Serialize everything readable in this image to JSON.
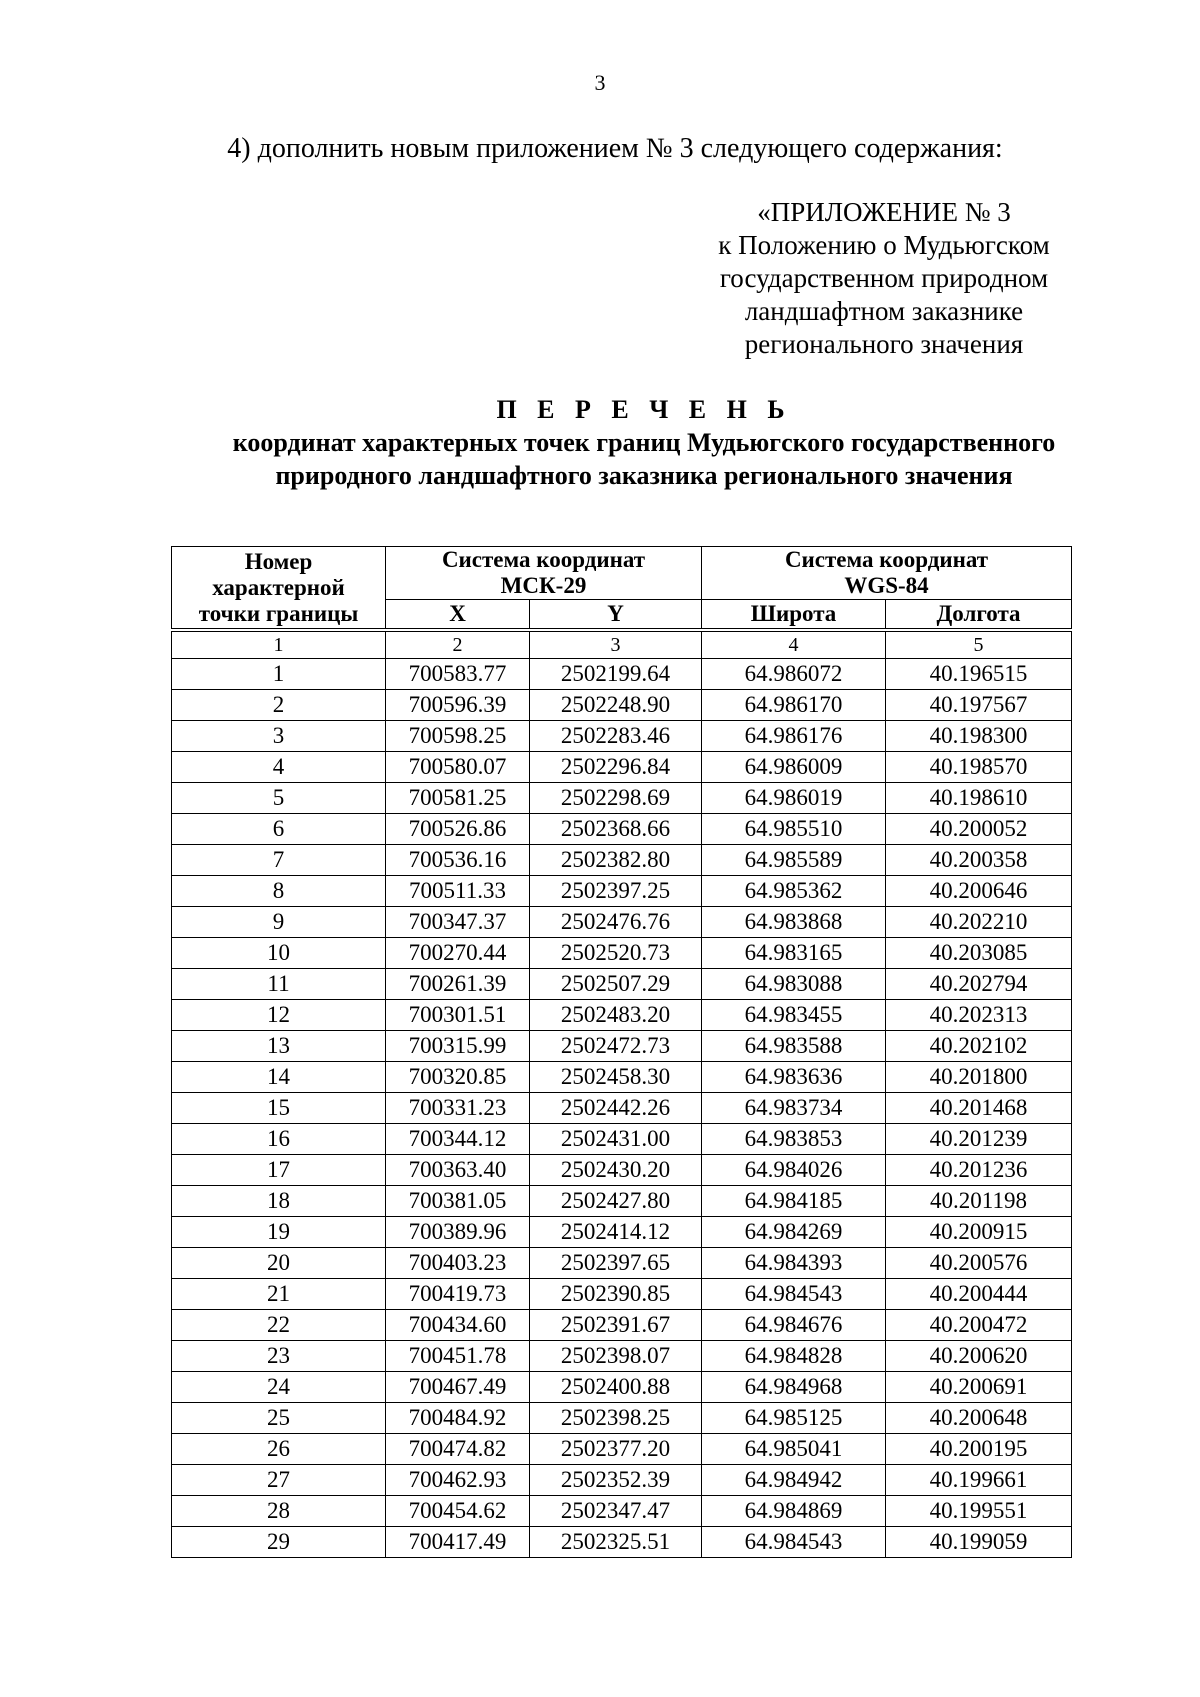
{
  "page_number": "3",
  "intro": "4) дополнить новым приложением № 3 следующего содержания:",
  "appendix": [
    "«ПРИЛОЖЕНИЕ № 3",
    "к Положению о Мудьюгском",
    "государственном природном",
    "ландшафтном заказнике",
    "регионального значения"
  ],
  "title": {
    "heading": "П Е Р Е Ч Е Н Ь",
    "line1": "координат характерных точек границ Мудьюгского государственного",
    "line2": "природного ландшафтного заказника регионального значения"
  },
  "table": {
    "header_point": [
      "Номер",
      "характерной",
      "точки границы"
    ],
    "header_msk": [
      "Система координат",
      "МСК-29"
    ],
    "header_wgs": [
      "Система координат",
      "WGS-84"
    ],
    "sub_headers": [
      "X",
      "Y",
      "Широта",
      "Долгота"
    ],
    "column_numbers": [
      "1",
      "2",
      "3",
      "4",
      "5"
    ],
    "rows": [
      [
        "1",
        "700583.77",
        "2502199.64",
        "64.986072",
        "40.196515"
      ],
      [
        "2",
        "700596.39",
        "2502248.90",
        "64.986170",
        "40.197567"
      ],
      [
        "3",
        "700598.25",
        "2502283.46",
        "64.986176",
        "40.198300"
      ],
      [
        "4",
        "700580.07",
        "2502296.84",
        "64.986009",
        "40.198570"
      ],
      [
        "5",
        "700581.25",
        "2502298.69",
        "64.986019",
        "40.198610"
      ],
      [
        "6",
        "700526.86",
        "2502368.66",
        "64.985510",
        "40.200052"
      ],
      [
        "7",
        "700536.16",
        "2502382.80",
        "64.985589",
        "40.200358"
      ],
      [
        "8",
        "700511.33",
        "2502397.25",
        "64.985362",
        "40.200646"
      ],
      [
        "9",
        "700347.37",
        "2502476.76",
        "64.983868",
        "40.202210"
      ],
      [
        "10",
        "700270.44",
        "2502520.73",
        "64.983165",
        "40.203085"
      ],
      [
        "11",
        "700261.39",
        "2502507.29",
        "64.983088",
        "40.202794"
      ],
      [
        "12",
        "700301.51",
        "2502483.20",
        "64.983455",
        "40.202313"
      ],
      [
        "13",
        "700315.99",
        "2502472.73",
        "64.983588",
        "40.202102"
      ],
      [
        "14",
        "700320.85",
        "2502458.30",
        "64.983636",
        "40.201800"
      ],
      [
        "15",
        "700331.23",
        "2502442.26",
        "64.983734",
        "40.201468"
      ],
      [
        "16",
        "700344.12",
        "2502431.00",
        "64.983853",
        "40.201239"
      ],
      [
        "17",
        "700363.40",
        "2502430.20",
        "64.984026",
        "40.201236"
      ],
      [
        "18",
        "700381.05",
        "2502427.80",
        "64.984185",
        "40.201198"
      ],
      [
        "19",
        "700389.96",
        "2502414.12",
        "64.984269",
        "40.200915"
      ],
      [
        "20",
        "700403.23",
        "2502397.65",
        "64.984393",
        "40.200576"
      ],
      [
        "21",
        "700419.73",
        "2502390.85",
        "64.984543",
        "40.200444"
      ],
      [
        "22",
        "700434.60",
        "2502391.67",
        "64.984676",
        "40.200472"
      ],
      [
        "23",
        "700451.78",
        "2502398.07",
        "64.984828",
        "40.200620"
      ],
      [
        "24",
        "700467.49",
        "2502400.88",
        "64.984968",
        "40.200691"
      ],
      [
        "25",
        "700484.92",
        "2502398.25",
        "64.985125",
        "40.200648"
      ],
      [
        "26",
        "700474.82",
        "2502377.20",
        "64.985041",
        "40.200195"
      ],
      [
        "27",
        "700462.93",
        "2502352.39",
        "64.984942",
        "40.199661"
      ],
      [
        "28",
        "700454.62",
        "2502347.47",
        "64.984869",
        "40.199551"
      ],
      [
        "29",
        "700417.49",
        "2502325.51",
        "64.984543",
        "40.199059"
      ]
    ]
  }
}
